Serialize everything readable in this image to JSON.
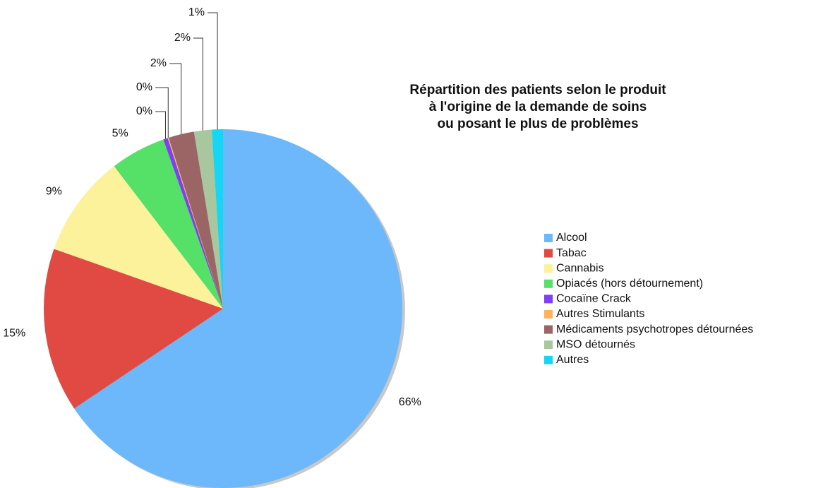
{
  "chart_data": {
    "type": "pie",
    "title": [
      "Répartition des patients selon le produit",
      "à l'origine de la demande de soins",
      "ou posant le plus de problèmes"
    ],
    "categories": [
      "Alcool",
      "Tabac",
      "Cannabis",
      "Opiacés (hors détournement)",
      "Cocaïne Crack",
      "Autres Stimulants",
      "Médicaments psychotropes détournées",
      "MSO détournés",
      "Autres"
    ],
    "values": [
      65.6,
      14.8,
      9.2,
      5.0,
      0.4,
      0.1,
      2.3,
      1.6,
      1.0
    ],
    "value_labels": [
      "66%",
      "15%",
      "9%",
      "5%",
      "0%",
      "0%",
      "2%",
      "2%",
      "1%"
    ],
    "colors": [
      "#6cb8fa",
      "#e04a43",
      "#fcf29c",
      "#55e068",
      "#7f3ff5",
      "#fdb35c",
      "#9c6565",
      "#a9c79e",
      "#14d6f5"
    ],
    "legend": "right"
  }
}
